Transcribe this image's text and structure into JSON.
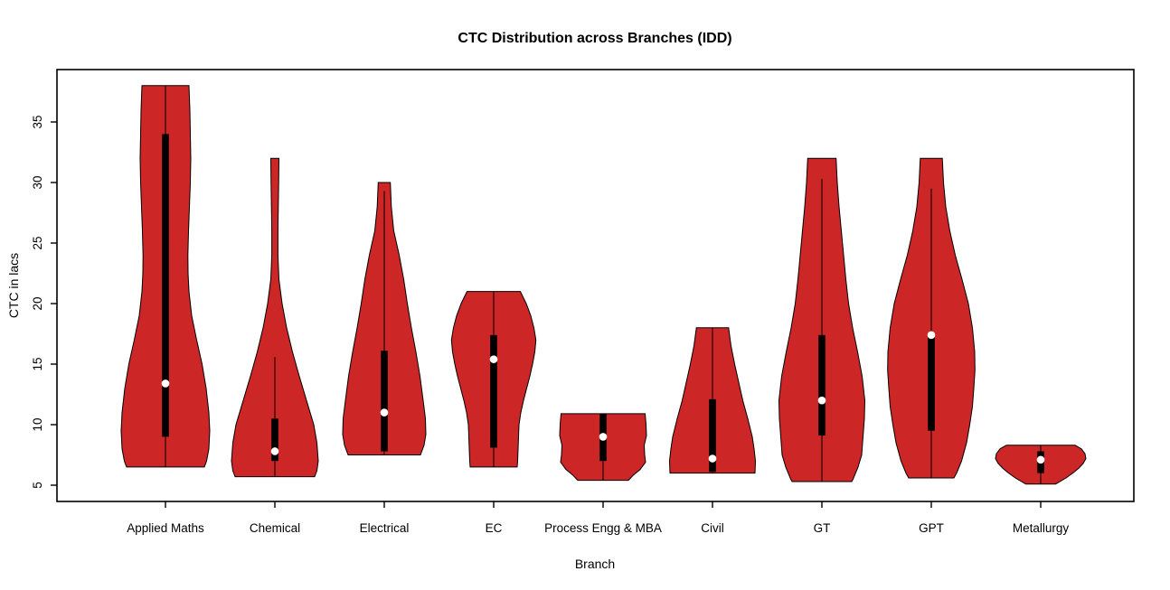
{
  "chart_data": {
    "type": "violin",
    "title": "CTC Distribution across Branches (IDD)",
    "xlabel": "Branch",
    "ylabel": "CTC in lacs",
    "y_ticks": [
      5,
      10,
      15,
      20,
      25,
      30,
      35
    ],
    "ylim": [
      3.7,
      39.3
    ],
    "grid": false,
    "legend": "none",
    "fill_color": "#CD2626",
    "outline_color": "#000000",
    "box_color": "#000000",
    "median_dot_color": "#ffffff",
    "categories": [
      "Applied Maths",
      "Chemical",
      "Electrical",
      "EC",
      "Process Engg & MBA",
      "Civil",
      "GT",
      "GPT",
      "Metallurgy"
    ],
    "violins": [
      {
        "branch": "Applied Maths",
        "min": 6.5,
        "max": 38.0,
        "q1": 9.0,
        "q3": 34.0,
        "median": 13.4,
        "whisker_low": 6.5,
        "whisker_high": 38.0,
        "density_profile": [
          [
            38.0,
            26
          ],
          [
            36.0,
            27
          ],
          [
            34.0,
            27.5
          ],
          [
            32.0,
            28
          ],
          [
            30.0,
            27.5
          ],
          [
            28.0,
            26.5
          ],
          [
            26.0,
            25.5
          ],
          [
            24.0,
            24.8
          ],
          [
            22.5,
            25
          ],
          [
            21.0,
            26
          ],
          [
            19.0,
            29
          ],
          [
            17.0,
            34.5
          ],
          [
            15.0,
            40.5
          ],
          [
            13.0,
            45
          ],
          [
            11.0,
            48
          ],
          [
            9.5,
            49
          ],
          [
            8.0,
            48
          ],
          [
            7.0,
            45.5
          ],
          [
            6.5,
            43
          ]
        ]
      },
      {
        "branch": "Chemical",
        "min": 5.7,
        "max": 32.0,
        "q1": 7.0,
        "q3": 10.5,
        "median": 7.8,
        "whisker_low": 5.7,
        "whisker_high": 15.6,
        "density_profile": [
          [
            32.0,
            4.5
          ],
          [
            30.0,
            4.2
          ],
          [
            28.0,
            3.8
          ],
          [
            26.0,
            3.4
          ],
          [
            24.0,
            3.4
          ],
          [
            22.0,
            4.5
          ],
          [
            20.0,
            8
          ],
          [
            18.0,
            13
          ],
          [
            16.0,
            19.5
          ],
          [
            14.0,
            27
          ],
          [
            12.0,
            35
          ],
          [
            10.0,
            43
          ],
          [
            8.5,
            46.5
          ],
          [
            7.0,
            48
          ],
          [
            6.2,
            46.5
          ],
          [
            5.7,
            44
          ]
        ]
      },
      {
        "branch": "Electrical",
        "min": 7.5,
        "max": 30.0,
        "q1": 7.8,
        "q3": 16.1,
        "median": 11.0,
        "whisker_low": 7.5,
        "whisker_high": 29.3,
        "density_profile": [
          [
            30.0,
            6.7
          ],
          [
            28.0,
            7.8
          ],
          [
            26.0,
            10.5
          ],
          [
            24.0,
            16.5
          ],
          [
            22.0,
            21.5
          ],
          [
            20.0,
            25.5
          ],
          [
            18.0,
            30
          ],
          [
            16.0,
            35
          ],
          [
            14.0,
            39.5
          ],
          [
            12.0,
            43
          ],
          [
            10.5,
            45.5
          ],
          [
            9.2,
            46
          ],
          [
            8.3,
            44
          ],
          [
            7.5,
            40
          ]
        ]
      },
      {
        "branch": "EC",
        "min": 6.5,
        "max": 21.0,
        "q1": 8.1,
        "q3": 17.4,
        "median": 15.4,
        "whisker_low": 6.5,
        "whisker_high": 21.0,
        "density_profile": [
          [
            21.0,
            29.5
          ],
          [
            20.0,
            36
          ],
          [
            19.0,
            41
          ],
          [
            18.0,
            44.5
          ],
          [
            17.0,
            46.7
          ],
          [
            16.0,
            45.5
          ],
          [
            15.0,
            43
          ],
          [
            14.0,
            40
          ],
          [
            13.0,
            36.5
          ],
          [
            12.0,
            33
          ],
          [
            11.0,
            30
          ],
          [
            10.0,
            28
          ],
          [
            9.0,
            27.5
          ],
          [
            8.0,
            27
          ],
          [
            7.0,
            26.5
          ],
          [
            6.5,
            26
          ]
        ]
      },
      {
        "branch": "Process Engg & MBA",
        "min": 5.4,
        "max": 10.9,
        "q1": 7.0,
        "q3": 10.9,
        "median": 9.0,
        "whisker_low": 5.4,
        "whisker_high": 10.9,
        "density_profile": [
          [
            10.9,
            46.5
          ],
          [
            10.0,
            47.5
          ],
          [
            9.1,
            48
          ],
          [
            8.3,
            45.5
          ],
          [
            7.5,
            46
          ],
          [
            6.9,
            47
          ],
          [
            6.3,
            41
          ],
          [
            5.8,
            33
          ],
          [
            5.4,
            28
          ]
        ]
      },
      {
        "branch": "Civil",
        "min": 6.0,
        "max": 18.0,
        "q1": 6.1,
        "q3": 12.1,
        "median": 7.2,
        "whisker_low": 6.0,
        "whisker_high": 18.0,
        "density_profile": [
          [
            18.0,
            17.8
          ],
          [
            16.5,
            20.5
          ],
          [
            15.0,
            24.5
          ],
          [
            13.5,
            29
          ],
          [
            12.0,
            33.5
          ],
          [
            10.5,
            39
          ],
          [
            9.0,
            44
          ],
          [
            8.0,
            46
          ],
          [
            7.0,
            47.5
          ],
          [
            6.0,
            47
          ]
        ]
      },
      {
        "branch": "GT",
        "min": 5.3,
        "max": 32.0,
        "q1": 9.1,
        "q3": 17.4,
        "median": 12.0,
        "whisker_low": 5.3,
        "whisker_high": 30.3,
        "density_profile": [
          [
            32.0,
            15.7
          ],
          [
            30.0,
            17
          ],
          [
            28.0,
            19
          ],
          [
            26.0,
            21.5
          ],
          [
            24.0,
            24
          ],
          [
            22.0,
            26.5
          ],
          [
            20.0,
            29.5
          ],
          [
            18.0,
            34
          ],
          [
            16.0,
            39.5
          ],
          [
            14.0,
            44.5
          ],
          [
            12.0,
            47.5
          ],
          [
            10.5,
            47
          ],
          [
            9.0,
            45.5
          ],
          [
            7.5,
            44
          ],
          [
            6.5,
            40
          ],
          [
            5.5,
            34.5
          ],
          [
            5.3,
            33
          ]
        ]
      },
      {
        "branch": "GPT",
        "min": 5.6,
        "max": 32.0,
        "q1": 9.5,
        "q3": 17.4,
        "median": 17.4,
        "whisker_low": 5.6,
        "whisker_high": 29.5,
        "density_profile": [
          [
            32.0,
            12.2
          ],
          [
            30.0,
            13.5
          ],
          [
            28.0,
            16
          ],
          [
            26.0,
            20.5
          ],
          [
            24.0,
            26.5
          ],
          [
            22.0,
            34
          ],
          [
            20.0,
            41
          ],
          [
            18.0,
            45.5
          ],
          [
            16.0,
            48
          ],
          [
            14.5,
            48.3
          ],
          [
            13.0,
            47
          ],
          [
            11.5,
            45.5
          ],
          [
            10.0,
            42.5
          ],
          [
            8.5,
            39
          ],
          [
            7.0,
            33.5
          ],
          [
            6.0,
            28
          ],
          [
            5.6,
            25
          ]
        ]
      },
      {
        "branch": "Metallurgy",
        "min": 5.1,
        "max": 8.3,
        "q1": 6.0,
        "q3": 7.8,
        "median": 7.1,
        "whisker_low": 5.1,
        "whisker_high": 8.3,
        "density_profile": [
          [
            8.3,
            38
          ],
          [
            8.0,
            45
          ],
          [
            7.6,
            49
          ],
          [
            7.2,
            50
          ],
          [
            6.8,
            47
          ],
          [
            6.4,
            42
          ],
          [
            6.0,
            35.5
          ],
          [
            5.6,
            28
          ],
          [
            5.1,
            16.5
          ]
        ]
      }
    ]
  }
}
